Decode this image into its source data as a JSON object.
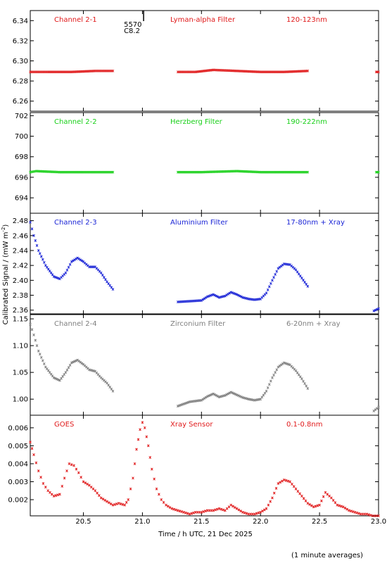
{
  "chart_data": {
    "type": "scatter",
    "xlabel": "Time / h UTC, 21 Dec 2025",
    "ylabel": "Calibrated Signal / (mW m",
    "ylabel_sup": "-2",
    "ylabel_close": ")",
    "footnote": "(1 minute averages)",
    "xlim": [
      20.05,
      23.0
    ],
    "xticks": [
      20.5,
      21.0,
      21.5,
      22.0,
      22.5,
      23.0
    ],
    "xtick_labels": [
      "20.5",
      "21.0",
      "21.5",
      "22.0",
      "22.5",
      "23.0"
    ],
    "annotation": {
      "line1": "5570",
      "line2": "C8.2",
      "x": 21.01
    },
    "panels": [
      {
        "name": "Channel 2-1",
        "filter": "Lyman-alpha Filter",
        "band": "120-123nm",
        "color": "#e0191a",
        "ylim": [
          6.25,
          6.35
        ],
        "yticks": [
          6.26,
          6.28,
          6.3,
          6.32,
          6.34
        ],
        "ytick_labels": [
          "6.26",
          "6.28",
          "6.30",
          "6.32",
          "6.34"
        ],
        "segments": [
          {
            "x": [
              20.05,
              20.2,
              20.4,
              20.6,
              20.75
            ],
            "y": [
              6.289,
              6.289,
              6.289,
              6.29,
              6.29
            ]
          },
          {
            "x": [
              21.3,
              21.45,
              21.6,
              21.8,
              22.0,
              22.2,
              22.4
            ],
            "y": [
              6.289,
              6.289,
              6.291,
              6.29,
              6.289,
              6.289,
              6.29
            ]
          },
          {
            "x": [
              22.98,
              23.0
            ],
            "y": [
              6.289,
              6.289
            ]
          }
        ]
      },
      {
        "name": "Channel 2-2",
        "filter": "Herzberg Filter",
        "band": "190-222nm",
        "color": "#19d019",
        "ylim": [
          692.5,
          702.3
        ],
        "yticks": [
          694,
          696,
          698,
          700,
          702
        ],
        "ytick_labels": [
          "694",
          "696",
          "698",
          "700",
          "702"
        ],
        "segments": [
          {
            "x": [
              20.05,
              20.1,
              20.3,
              20.5,
              20.75
            ],
            "y": [
              696.5,
              696.6,
              696.5,
              696.5,
              696.5
            ]
          },
          {
            "x": [
              21.3,
              21.5,
              21.8,
              22.0,
              22.2,
              22.4
            ],
            "y": [
              696.5,
              696.5,
              696.6,
              696.5,
              696.5,
              696.5
            ]
          },
          {
            "x": [
              22.98,
              23.0
            ],
            "y": [
              696.5,
              696.5
            ]
          }
        ]
      },
      {
        "name": "Channel 2-3",
        "filter": "Aluminium Filter",
        "band": "17-80nm + Xray",
        "color": "#1a24d6",
        "ylim": [
          2.355,
          2.49
        ],
        "yticks": [
          2.36,
          2.38,
          2.4,
          2.42,
          2.44,
          2.46,
          2.48
        ],
        "ytick_labels": [
          "2.36",
          "2.38",
          "2.40",
          "2.42",
          "2.44",
          "2.46",
          "2.48"
        ],
        "segments": [
          {
            "x": [
              20.05,
              20.08,
              20.12,
              20.18,
              20.25,
              20.3,
              20.35,
              20.4,
              20.45,
              20.5,
              20.55,
              20.6,
              20.65,
              20.7,
              20.75
            ],
            "y": [
              2.478,
              2.46,
              2.44,
              2.42,
              2.405,
              2.402,
              2.41,
              2.425,
              2.43,
              2.425,
              2.418,
              2.418,
              2.41,
              2.398,
              2.388
            ]
          },
          {
            "x": [
              21.3,
              21.4,
              21.5,
              21.55,
              21.6,
              21.65,
              21.7,
              21.75,
              21.8,
              21.85,
              21.9,
              21.95,
              22.0,
              22.05,
              22.1,
              22.15,
              22.2,
              22.25,
              22.3,
              22.35,
              22.4
            ],
            "y": [
              2.371,
              2.372,
              2.373,
              2.378,
              2.381,
              2.377,
              2.379,
              2.384,
              2.381,
              2.377,
              2.375,
              2.374,
              2.375,
              2.383,
              2.4,
              2.416,
              2.422,
              2.421,
              2.414,
              2.403,
              2.392
            ]
          },
          {
            "x": [
              22.96,
              23.0
            ],
            "y": [
              2.359,
              2.362
            ]
          }
        ]
      },
      {
        "name": "Channel 2-4",
        "filter": "Zirconium Filter",
        "band": "6-20nm + Xray",
        "color": "#7f7f7f",
        "ylim": [
          0.97,
          1.158
        ],
        "yticks": [
          1.0,
          1.05,
          1.1,
          1.15
        ],
        "ytick_labels": [
          "1.00",
          "1.05",
          "1.10",
          "1.15"
        ],
        "segments": [
          {
            "x": [
              20.05,
              20.08,
              20.12,
              20.18,
              20.25,
              20.3,
              20.35,
              20.4,
              20.45,
              20.5,
              20.55,
              20.6,
              20.65,
              20.7,
              20.75
            ],
            "y": [
              1.14,
              1.12,
              1.09,
              1.06,
              1.04,
              1.035,
              1.05,
              1.068,
              1.073,
              1.065,
              1.055,
              1.052,
              1.04,
              1.03,
              1.015
            ]
          },
          {
            "x": [
              21.3,
              21.4,
              21.5,
              21.55,
              21.6,
              21.65,
              21.7,
              21.75,
              21.8,
              21.85,
              21.9,
              21.95,
              22.0,
              22.05,
              22.1,
              22.15,
              22.2,
              22.25,
              22.3,
              22.35,
              22.4
            ],
            "y": [
              0.987,
              0.995,
              0.998,
              1.005,
              1.01,
              1.004,
              1.007,
              1.013,
              1.008,
              1.003,
              1.0,
              0.998,
              1.0,
              1.015,
              1.04,
              1.06,
              1.068,
              1.064,
              1.053,
              1.038,
              1.02
            ]
          },
          {
            "x": [
              22.96,
              23.0
            ],
            "y": [
              0.978,
              0.985
            ]
          }
        ]
      },
      {
        "name": "GOES",
        "filter": "Xray Sensor",
        "band": "0.1-0.8nm",
        "color": "#e0191a",
        "ylim": [
          0.0011,
          0.0067
        ],
        "yticks": [
          0.002,
          0.003,
          0.004,
          0.005,
          0.006
        ],
        "ytick_labels": [
          "0.002",
          "0.003",
          "0.004",
          "0.005",
          "0.006"
        ],
        "segments": [
          {
            "x": [
              20.05,
              20.08,
              20.12,
              20.16,
              20.2,
              20.25,
              20.3,
              20.34,
              20.38,
              20.42,
              20.46,
              20.5,
              20.55,
              20.6,
              20.65,
              20.7,
              20.75,
              20.8,
              20.85,
              20.88,
              20.92,
              20.95,
              20.98,
              21.0,
              21.02,
              21.05,
              21.08,
              21.12,
              21.16,
              21.2,
              21.25,
              21.3,
              21.35,
              21.4,
              21.45,
              21.5,
              21.55,
              21.6,
              21.65,
              21.7,
              21.75,
              21.8,
              21.85,
              21.9,
              21.95,
              22.0,
              22.05,
              22.1,
              22.15,
              22.2,
              22.25,
              22.3,
              22.35,
              22.4,
              22.45,
              22.5,
              22.55,
              22.6,
              22.65,
              22.7,
              22.75,
              22.8,
              22.85,
              22.9,
              22.95,
              23.0
            ],
            "y": [
              0.0052,
              0.0045,
              0.0036,
              0.0029,
              0.0025,
              0.0022,
              0.0023,
              0.0032,
              0.004,
              0.0039,
              0.0035,
              0.003,
              0.0028,
              0.0025,
              0.0021,
              0.0019,
              0.0017,
              0.0018,
              0.0017,
              0.002,
              0.0032,
              0.0048,
              0.0059,
              0.0063,
              0.006,
              0.005,
              0.0037,
              0.0026,
              0.002,
              0.0017,
              0.0015,
              0.0014,
              0.0013,
              0.0012,
              0.0013,
              0.0013,
              0.0014,
              0.0014,
              0.0015,
              0.0014,
              0.0017,
              0.0015,
              0.0013,
              0.0012,
              0.0012,
              0.0013,
              0.0015,
              0.0021,
              0.0029,
              0.0031,
              0.003,
              0.0026,
              0.0022,
              0.0018,
              0.0016,
              0.0017,
              0.0024,
              0.0021,
              0.0017,
              0.0016,
              0.0014,
              0.0013,
              0.0012,
              0.0012,
              0.0011,
              0.0011
            ]
          }
        ]
      }
    ]
  }
}
